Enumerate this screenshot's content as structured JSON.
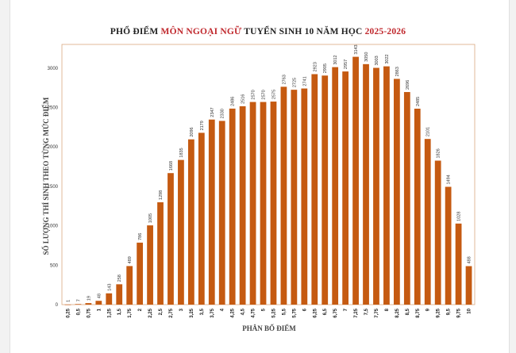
{
  "title": {
    "part1": "PHỔ ĐIỂM ",
    "part2": "MÔN NGOẠI NGỮ",
    "part3": " TUYỂN SINH 10 NĂM HỌC ",
    "part4": "2025-2026"
  },
  "colors": {
    "bar": "#c55a11",
    "title_highlight": "#c0282d",
    "plot_border": "#d9a77f"
  },
  "chart_data": {
    "type": "bar",
    "title": "PHỔ ĐIỂM MÔN NGOẠI NGỮ TUYỂN SINH 10 NĂM HỌC 2025-2026",
    "xlabel": "PHÂN BỐ ĐIỂM",
    "ylabel": "SỐ LƯỢNG THÍ SINH THEO TỪNG MỨC ĐIỂM",
    "ylim": [
      0,
      3300
    ],
    "yticks": [
      0,
      500,
      1000,
      1500,
      2000,
      2500,
      3000
    ],
    "grid": false,
    "categories": [
      "0,25",
      "0,5",
      "0,75",
      "1",
      "1,25",
      "1,5",
      "1,75",
      "2",
      "2,25",
      "2,5",
      "2,75",
      "3",
      "3,25",
      "3,5",
      "3,75",
      "4",
      "4,25",
      "4,5",
      "4,75",
      "5",
      "5,25",
      "5,5",
      "5,75",
      "6",
      "6,25",
      "6,5",
      "6,75",
      "7",
      "7,25",
      "7,5",
      "7,75",
      "8",
      "8,25",
      "8,5",
      "8,75",
      "9",
      "9,25",
      "9,5",
      "9,75",
      "10"
    ],
    "values": [
      1,
      7,
      19,
      48,
      143,
      258,
      489,
      786,
      1005,
      1298,
      1668,
      1835,
      2096,
      2179,
      2347,
      2330,
      2486,
      2516,
      2570,
      2570,
      2575,
      2763,
      2725,
      2741,
      2923,
      2905,
      3012,
      2957,
      3143,
      3050,
      3003,
      3022,
      2863,
      2696,
      2485,
      2101,
      1826,
      1494,
      1028,
      488
    ],
    "data_labels": [
      "1",
      "7",
      "19",
      "48",
      "143",
      "258",
      "489",
      "786",
      "1005",
      "1298",
      "1668",
      "1835",
      "2096",
      "2179",
      "2347",
      "2330",
      "2486",
      "2516",
      "2570",
      "2570",
      "2575",
      "2763",
      "2725",
      "2741",
      "2923",
      "2905",
      "3012",
      "2957",
      "3143",
      "3050",
      "3003",
      "3022",
      "2863",
      "2696",
      "2485",
      "2101",
      "1826",
      "1494",
      "1028",
      "488"
    ]
  }
}
